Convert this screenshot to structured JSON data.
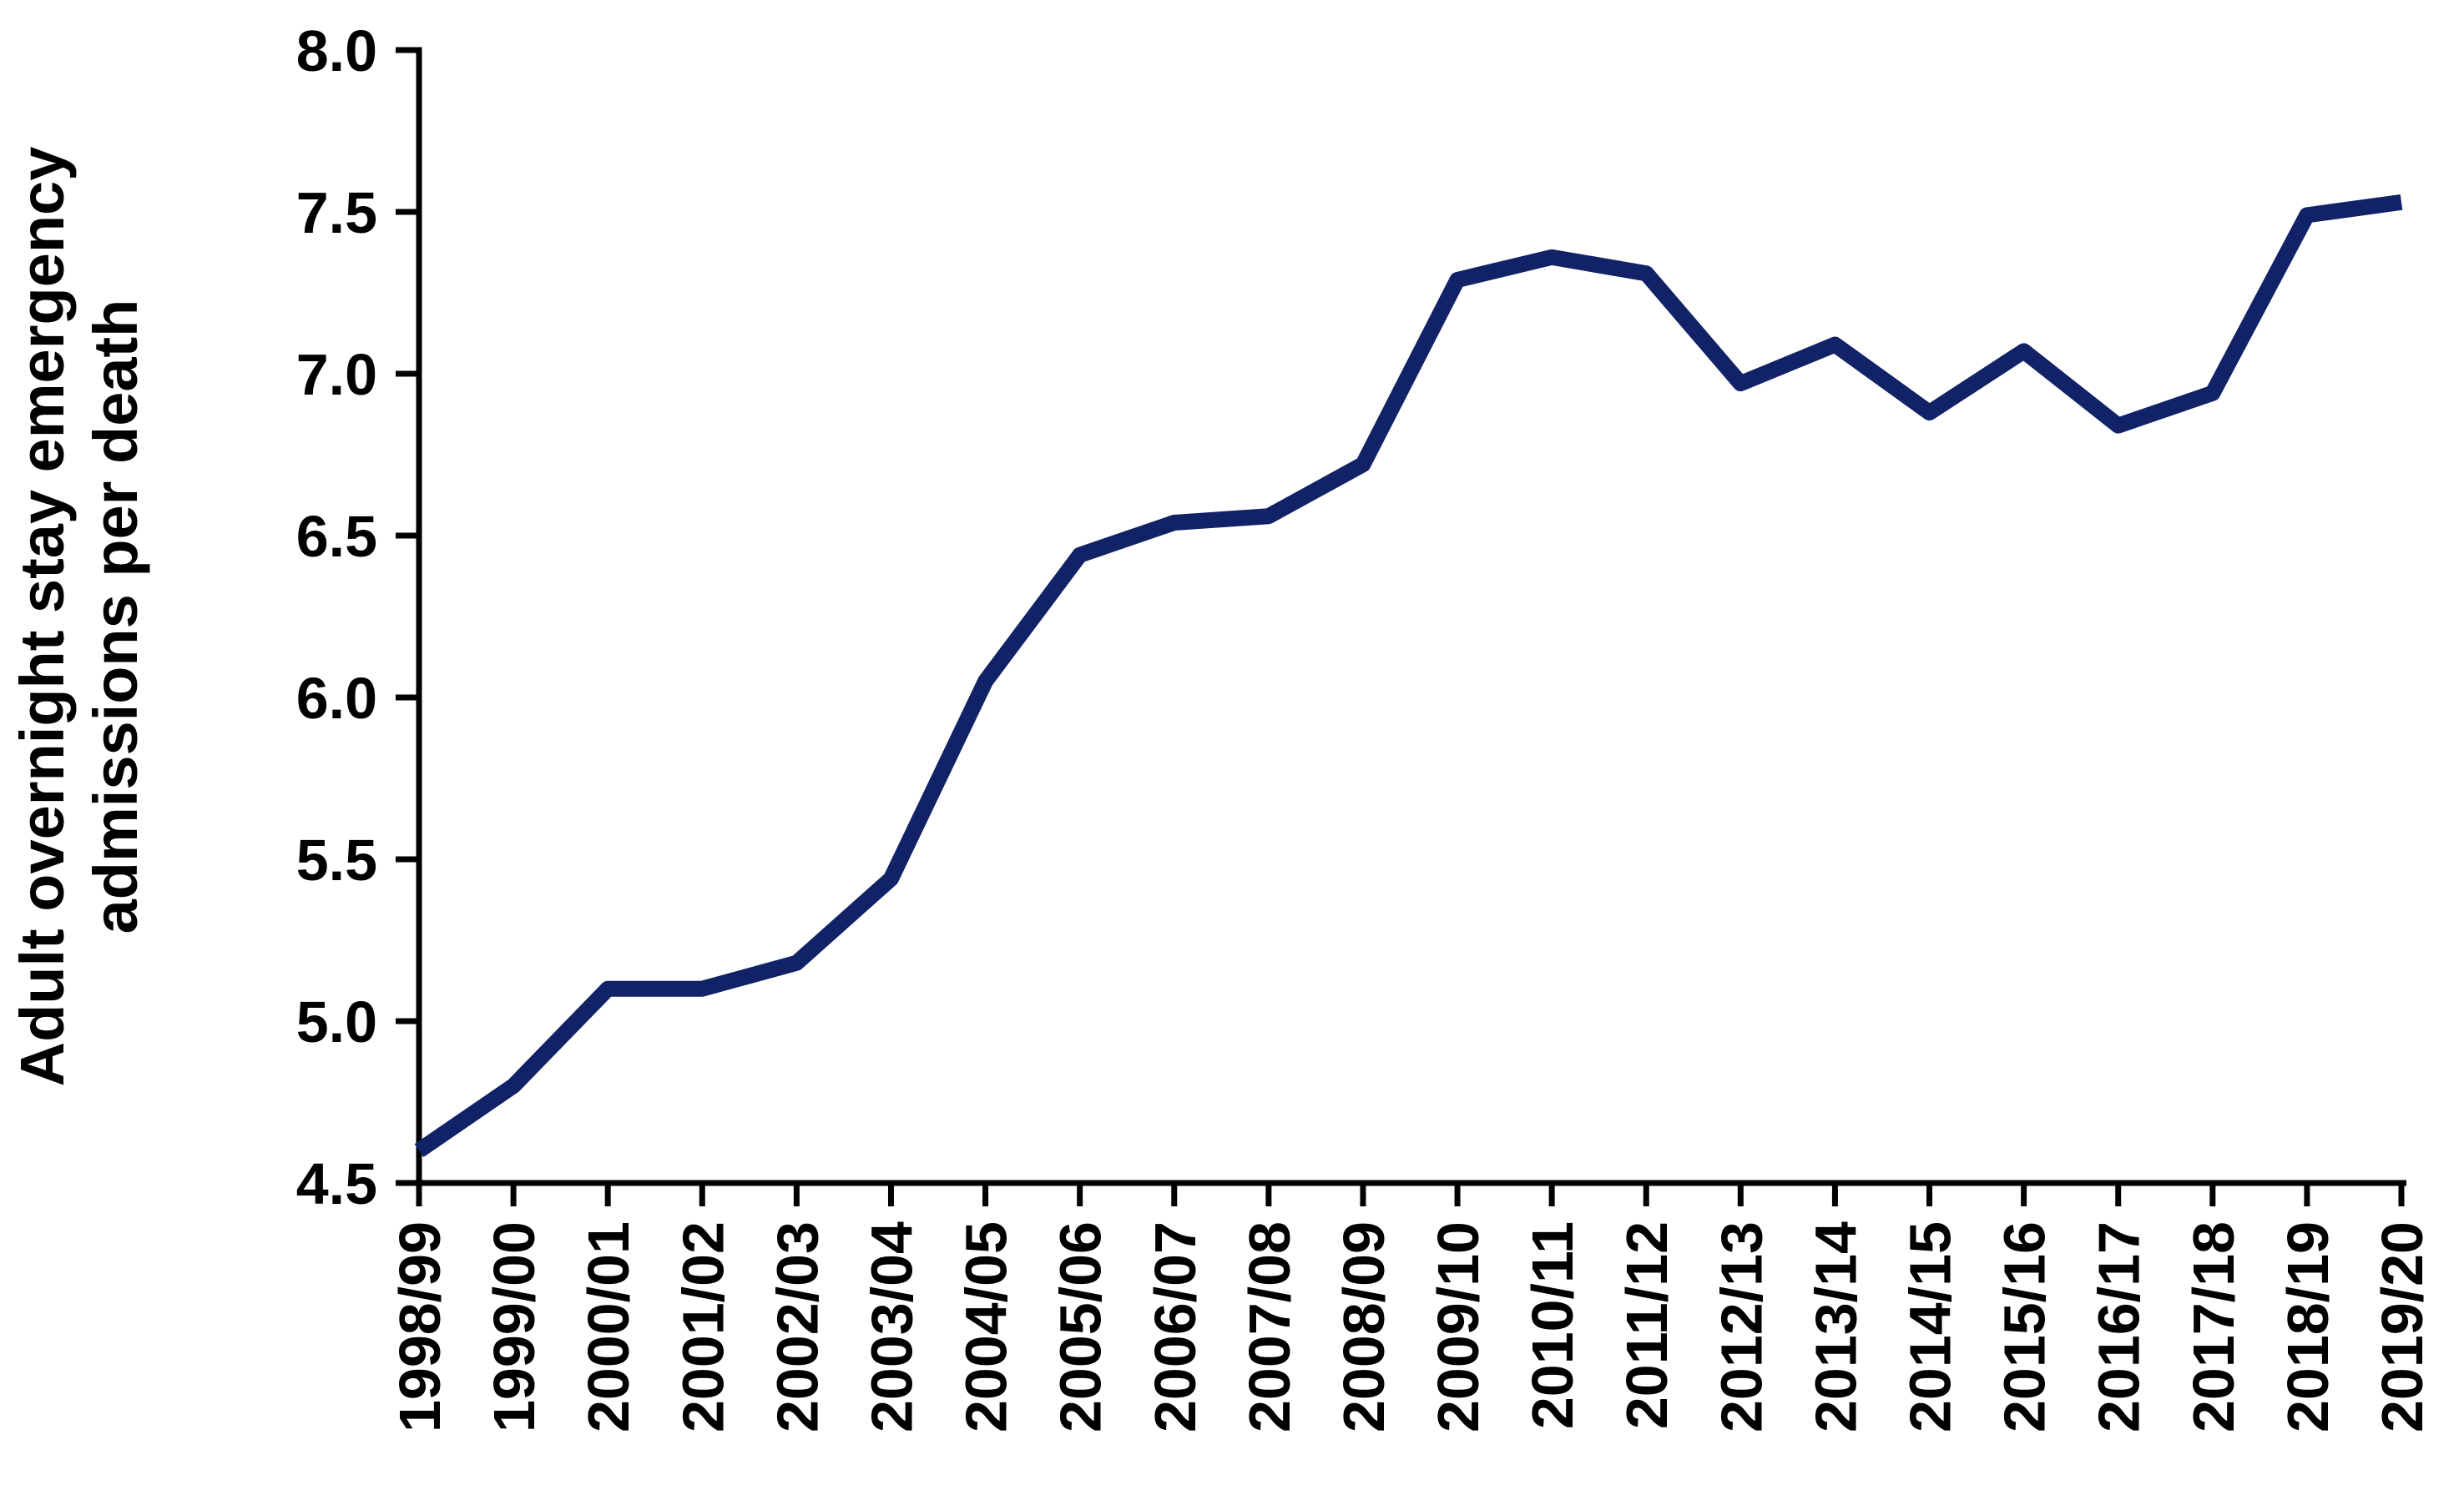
{
  "chart_data": {
    "type": "line",
    "title": "",
    "xlabel": "",
    "ylabel": "Adult overnight stay emergency admissions per death",
    "ylabel_lines": [
      "Adult overnight stay emergency",
      "admissions per death"
    ],
    "categories": [
      "1998/99",
      "1999/00",
      "2000/01",
      "2001/02",
      "2002/03",
      "2003/04",
      "2004/05",
      "2005/06",
      "2006/07",
      "2007/08",
      "2008/09",
      "2009/10",
      "2010/11",
      "2011/12",
      "2012/13",
      "2013/14",
      "2014/15",
      "2015/16",
      "2016/17",
      "2017/18",
      "2018/19",
      "2019/20"
    ],
    "values": [
      4.6,
      4.8,
      5.1,
      5.1,
      5.18,
      5.44,
      6.05,
      6.44,
      6.54,
      6.56,
      6.72,
      7.29,
      7.36,
      7.31,
      6.97,
      7.09,
      6.88,
      7.07,
      6.84,
      6.94,
      7.49,
      7.53
    ],
    "ylim": [
      4.5,
      8.0
    ],
    "ytick_labels": [
      "4.5",
      "5.0",
      "5.5",
      "6.0",
      "6.5",
      "7.0",
      "7.5",
      "8.0"
    ],
    "ytick_values": [
      4.5,
      5.0,
      5.5,
      6.0,
      6.5,
      7.0,
      7.5,
      8.0
    ],
    "grid": false,
    "legend": "none",
    "line_color": "#112266",
    "axis_color": "#000000",
    "background_color": "#ffffff"
  }
}
